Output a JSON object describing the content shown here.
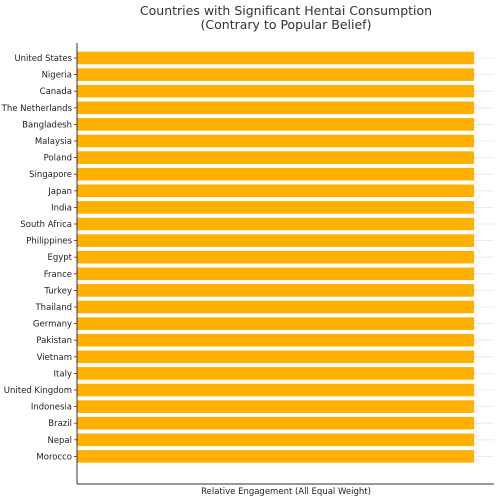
{
  "chart_data": {
    "type": "bar",
    "orientation": "horizontal",
    "title": "Countries with Significant Hentai Consumption",
    "subtitle": "(Contrary to Popular Belief)",
    "xlabel": "Relative Engagement (All Equal Weight)",
    "ylabel": "",
    "categories": [
      "United States",
      "Nigeria",
      "Canada",
      "The Netherlands",
      "Bangladesh",
      "Malaysia",
      "Poland",
      "Singapore",
      "Japan",
      "India",
      "South Africa",
      "Philippines",
      "Egypt",
      "France",
      "Turkey",
      "Thailand",
      "Germany",
      "Pakistan",
      "Vietnam",
      "Italy",
      "United Kingdom",
      "Indonesia",
      "Brazil",
      "Nepal",
      "Morocco"
    ],
    "values": [
      1,
      1,
      1,
      1,
      1,
      1,
      1,
      1,
      1,
      1,
      1,
      1,
      1,
      1,
      1,
      1,
      1,
      1,
      1,
      1,
      1,
      1,
      1,
      1,
      1
    ],
    "xlim": [
      0,
      1.05
    ],
    "x_ticks_shown": false,
    "grid": "horizontal",
    "legend": "none",
    "bar_color": "#FFB000"
  }
}
